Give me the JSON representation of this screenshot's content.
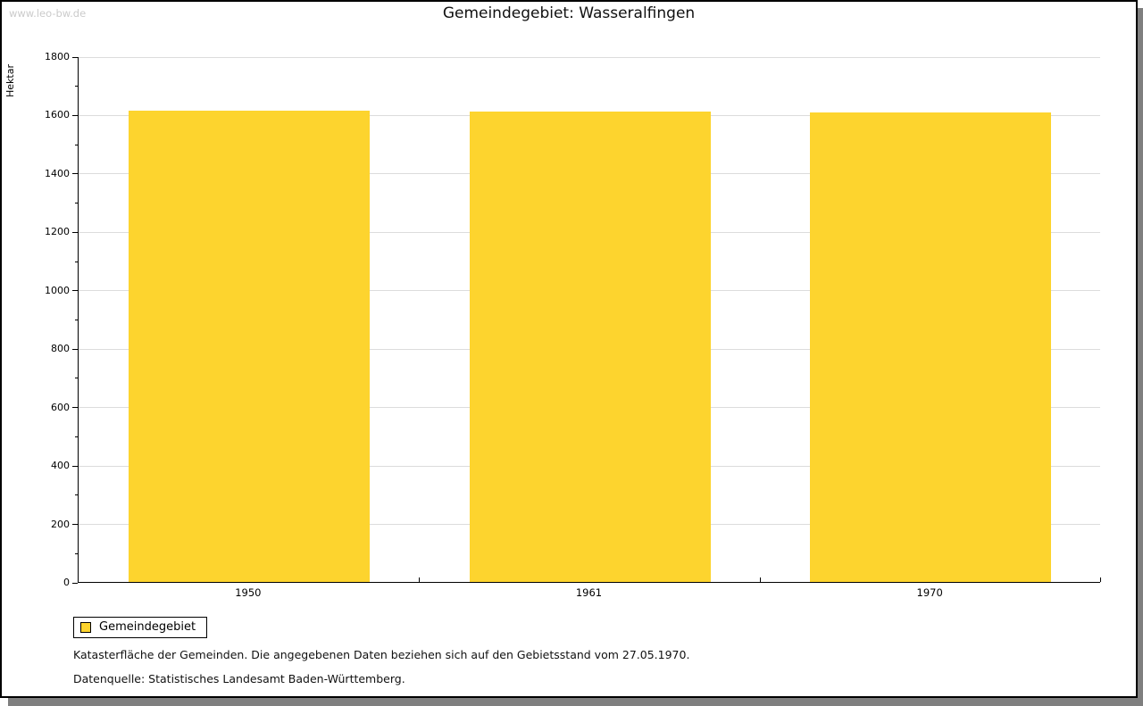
{
  "watermark": "www.leo-bw.de",
  "title": "Gemeindegebiet: Wasseralfingen",
  "colors": {
    "bar": "#fdd42e",
    "grid": "#dcdcdc",
    "axis": "#000000",
    "watermark": "#cbcbcb",
    "shadow": "#7f7f7f"
  },
  "chart_data": {
    "type": "bar",
    "title": "Gemeindegebiet: Wasseralfingen",
    "xlabel": "",
    "ylabel": "Hektar",
    "categories": [
      "1950",
      "1961",
      "1970"
    ],
    "series": [
      {
        "name": "Gemeindegebiet",
        "values": [
          1615,
          1612,
          1609
        ]
      }
    ],
    "ylim": [
      0,
      1800
    ],
    "ytick_step": 200,
    "ytick_minor_step": 100,
    "grid": true,
    "legend_position": "bottom-left"
  },
  "legend": {
    "label": "Gemeindegebiet"
  },
  "footer": {
    "line1": "Katasterfläche der Gemeinden. Die angegebenen Daten beziehen sich auf den Gebietsstand vom 27.05.1970.",
    "line2": "Datenquelle: Statistisches Landesamt Baden-Württemberg."
  }
}
